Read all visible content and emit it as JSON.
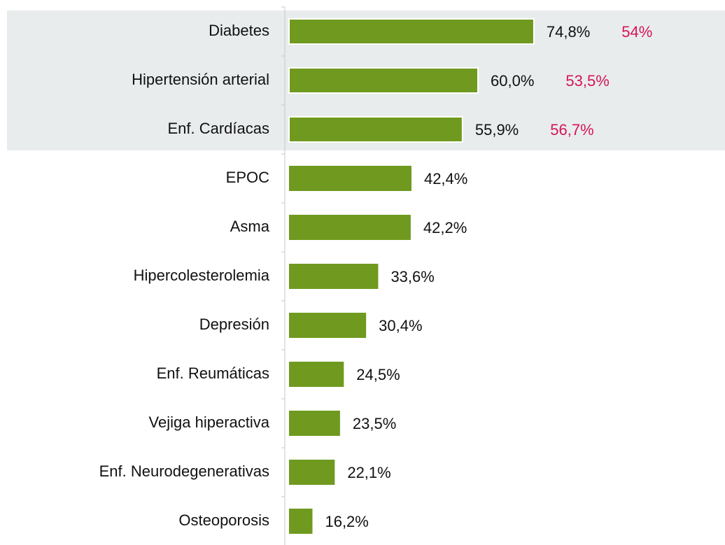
{
  "chart_data": {
    "type": "hbar",
    "categories": [
      "Diabetes",
      "Hipertensión arterial",
      "Enf. Cardíacas",
      "EPOC",
      "Asma",
      "Hipercolesterolemia",
      "Depresión",
      "Enf. Reumáticas",
      "Vejiga hiperactiva",
      "Enf. Neurodegenerativas",
      "Osteoporosis"
    ],
    "series": [
      {
        "color": "#6f9a1f",
        "values": [
          74.8,
          60.0,
          55.9,
          42.4,
          42.2,
          33.6,
          30.4,
          24.5,
          23.5,
          22.1,
          16.2
        ],
        "value_labels": [
          "74,8%",
          "60,0%",
          "55,9%",
          "42,4%",
          "42,2%",
          "33,6%",
          "30,4%",
          "24,5%",
          "23,5%",
          "22,1%",
          "16,2%"
        ]
      },
      {
        "color": "#d5145a",
        "values": [
          54,
          53.5,
          56.7,
          null,
          null,
          null,
          null,
          null,
          null,
          null,
          null
        ],
        "value_labels": [
          "54%",
          "53,5%",
          "56,7%",
          null,
          null,
          null,
          null,
          null,
          null,
          null,
          null
        ]
      }
    ],
    "xlim": [
      10,
      90
    ]
  }
}
